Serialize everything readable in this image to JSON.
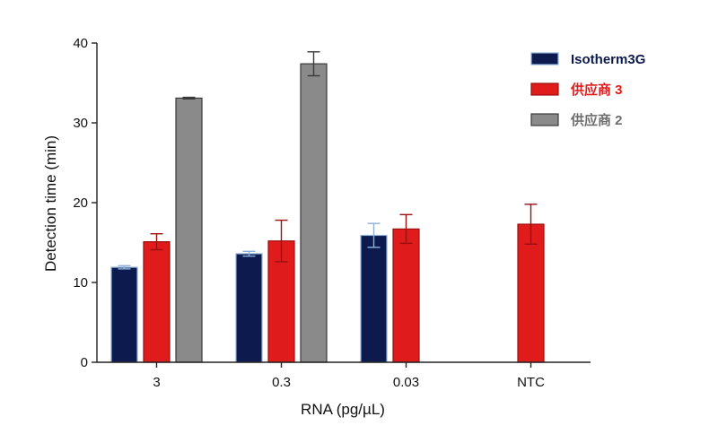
{
  "chart_data": {
    "type": "bar",
    "xlabel": "RNA (pg/µL)",
    "ylabel": "Detection time (min)",
    "ylim": [
      0,
      40
    ],
    "yticks": [
      0,
      10,
      20,
      30,
      40
    ],
    "categories": [
      "3",
      "0.3",
      "0.03",
      "NTC"
    ],
    "grid": false,
    "legend_position": "top-right",
    "series": [
      {
        "name": "Isotherm3G",
        "color": "#0c1a4e",
        "edge_color": "#8fb0d8",
        "label_color": "#0c1a4e",
        "values": [
          11.9,
          13.6,
          15.9,
          0
        ],
        "errors": [
          0.2,
          0.3,
          1.5,
          0
        ]
      },
      {
        "name": "供应商 3",
        "color": "#e01b1b",
        "edge_color": "#9a1010",
        "label_color": "#e01b1b",
        "values": [
          15.1,
          15.2,
          16.7,
          17.3
        ],
        "errors": [
          1.0,
          2.6,
          1.8,
          2.5
        ]
      },
      {
        "name": "供应商 2",
        "color": "#8a8a8a",
        "edge_color": "#3a3a3a",
        "label_color": "#6e6e6e",
        "values": [
          33.1,
          37.4,
          0,
          0
        ],
        "errors": [
          0.1,
          1.5,
          0,
          0
        ]
      }
    ]
  }
}
